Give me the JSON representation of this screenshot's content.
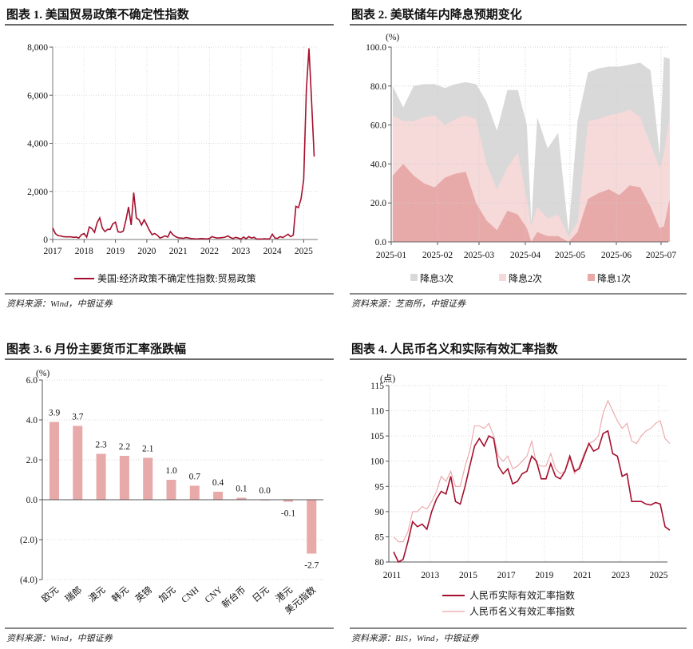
{
  "panels": [
    {
      "title": "图表 1. 美国贸易政策不确定性指数",
      "source": "资料来源：Wind，中银证券"
    },
    {
      "title": "图表 2. 美联储年内降息预期变化",
      "source": "资料来源：芝商所，中银证券"
    },
    {
      "title": "图表 3. 6 月份主要货币汇率涨跌幅",
      "source": "资料来源：Wind，中银证券"
    },
    {
      "title": "图表 4. 人民币名义和实际有效汇率指数",
      "source": "资料来源：BIS，Wind，中银证券"
    }
  ],
  "chart_data": [
    {
      "type": "line",
      "unit_label": "",
      "ylim": [
        0,
        8000
      ],
      "yticks": [
        "0",
        "2,000",
        "4,000",
        "6,000",
        "8,000"
      ],
      "xticks": [
        "2017",
        "2018",
        "2019",
        "2020",
        "2021",
        "2022",
        "2023",
        "2024",
        "2025"
      ],
      "grid": true,
      "legend_position": "bottom",
      "series": [
        {
          "name": "美国:经济政策不确定性指数:贸易政策",
          "color": "#a50f2d",
          "start": "2017-01",
          "frequency": "monthly",
          "values": [
            480,
            250,
            160,
            150,
            120,
            110,
            110,
            110,
            90,
            100,
            60,
            200,
            250,
            100,
            520,
            450,
            300,
            700,
            900,
            470,
            330,
            420,
            420,
            650,
            720,
            320,
            300,
            350,
            800,
            1350,
            600,
            1950,
            900,
            820,
            600,
            820,
            600,
            380,
            200,
            250,
            180,
            60,
            100,
            150,
            100,
            330,
            200,
            120,
            70,
            60,
            50,
            80,
            60,
            40,
            30,
            20,
            30,
            40,
            30,
            20,
            50,
            120,
            80,
            60,
            70,
            80,
            100,
            150,
            80,
            40,
            90,
            60,
            20,
            100,
            30,
            120,
            60,
            90,
            20,
            20,
            20,
            30,
            20,
            30,
            220,
            60,
            50,
            120,
            80,
            150,
            220,
            120,
            180,
            1380,
            1320,
            1700,
            2500,
            6200,
            7950,
            5800,
            3450
          ]
        }
      ]
    },
    {
      "type": "area",
      "unit_label": "(%)",
      "ylim": [
        0,
        100
      ],
      "yticks": [
        "0.0",
        "20.0",
        "40.0",
        "60.0",
        "80.0",
        "100.0"
      ],
      "xticks": [
        "2025-01",
        "2025-02",
        "2025-03",
        "2025-04",
        "2025-05",
        "2025-06",
        "2025-07"
      ],
      "grid": true,
      "stacked": false,
      "legend_position": "bottom",
      "x": [
        "2025-01-02",
        "2025-01-09",
        "2025-01-16",
        "2025-01-23",
        "2025-01-30",
        "2025-02-06",
        "2025-02-13",
        "2025-02-20",
        "2025-02-27",
        "2025-03-06",
        "2025-03-13",
        "2025-03-20",
        "2025-03-27",
        "2025-04-02",
        "2025-04-05",
        "2025-04-09",
        "2025-04-16",
        "2025-04-23",
        "2025-04-30",
        "2025-05-06",
        "2025-05-13",
        "2025-05-20",
        "2025-05-27",
        "2025-06-03",
        "2025-06-10",
        "2025-06-17",
        "2025-06-24",
        "2025-06-30",
        "2025-07-03",
        "2025-07-07"
      ],
      "series": [
        {
          "name": "降息3次",
          "color": "#d9d9d9",
          "values": [
            80,
            69,
            80,
            81,
            81,
            79,
            81,
            82,
            81,
            72,
            57,
            78,
            78,
            60,
            10,
            64,
            48,
            56,
            5,
            62,
            87,
            89,
            90,
            90,
            91,
            92,
            88,
            45,
            95,
            94
          ]
        },
        {
          "name": "降息2次",
          "color": "#f6d9d9",
          "values": [
            65,
            62,
            62,
            64,
            65,
            60,
            63,
            65,
            63,
            40,
            27,
            38,
            46,
            22,
            8,
            18,
            12,
            14,
            3,
            10,
            62,
            63,
            65,
            66,
            68,
            64,
            50,
            38,
            45,
            65
          ]
        },
        {
          "name": "降息1次",
          "color": "#e8a9a9",
          "values": [
            34,
            40,
            34,
            30,
            28,
            33,
            35,
            36,
            20,
            11,
            6,
            16,
            14,
            7,
            0,
            5,
            3,
            3,
            0,
            5,
            22,
            25,
            27,
            24,
            29,
            28,
            18,
            7,
            8,
            22
          ]
        }
      ]
    },
    {
      "type": "bar",
      "unit_label": "(%)",
      "ylim": [
        -4,
        6
      ],
      "yticks": [
        "(4.0)",
        "(2.0)",
        "0.0",
        "2.0",
        "4.0",
        "6.0"
      ],
      "negative_tick_color": "#d01010",
      "bar_color": "#e8a9a9",
      "grid": true,
      "categories": [
        "欧元",
        "瑞郎",
        "澳元",
        "韩元",
        "英镑",
        "加元",
        "CNH",
        "CNY",
        "新台币",
        "日元",
        "港元",
        "美元指数"
      ],
      "values": [
        3.9,
        3.7,
        2.3,
        2.2,
        2.1,
        1.0,
        0.7,
        0.4,
        0.1,
        0.0,
        -0.1,
        -2.7
      ],
      "data_labels": [
        "3.9",
        "3.7",
        "2.3",
        "2.2",
        "2.1",
        "1.0",
        "0.7",
        "0.4",
        "0.1",
        "0.0",
        "-0.1",
        "-2.7"
      ]
    },
    {
      "type": "line",
      "unit_label": "(点)",
      "ylim": [
        80,
        115
      ],
      "yticks": [
        "80",
        "85",
        "90",
        "95",
        "100",
        "105",
        "110",
        "115"
      ],
      "xticks": [
        "2011",
        "2013",
        "2015",
        "2017",
        "2019",
        "2021",
        "2023",
        "2025"
      ],
      "grid": true,
      "legend_position": "bottom",
      "start": "2011-02",
      "frequency": "quarterly",
      "series": [
        {
          "name": "人民币实际有效汇率指数",
          "color": "#a50f2d",
          "values": [
            82,
            80,
            80.5,
            84,
            88,
            87,
            87.5,
            86.5,
            90,
            92.5,
            94,
            93.5,
            97,
            92,
            91.5,
            95,
            99,
            103,
            104.5,
            103,
            105,
            104.5,
            99,
            97.5,
            98.5,
            95.5,
            96,
            97.5,
            98,
            101,
            100,
            96.5,
            96.5,
            99.5,
            97,
            96.5,
            98,
            101,
            98,
            98.5,
            101,
            103.5,
            102,
            102.5,
            105.5,
            106,
            101.5,
            101,
            97,
            97.5,
            92,
            92,
            92,
            91.5,
            91.3,
            91.8,
            91.5,
            87,
            86.3
          ]
        },
        {
          "name": "人民币名义有效汇率指数",
          "color": "#eba5a8",
          "values": [
            85,
            84,
            84,
            86,
            90,
            90,
            91,
            90.5,
            92,
            94,
            97,
            96,
            98,
            95,
            95,
            99,
            102,
            107,
            107,
            106.5,
            107.5,
            105,
            101,
            100,
            101,
            98.5,
            99,
            100,
            101,
            104,
            99.5,
            99,
            99,
            101.5,
            98.5,
            97.5,
            98,
            100.5,
            97.5,
            99,
            101.5,
            103.5,
            104,
            105,
            109.5,
            112,
            110,
            108,
            106.5,
            107.5,
            104,
            103.5,
            105,
            106,
            106.5,
            107.5,
            108,
            104.5,
            103.5
          ]
        }
      ]
    }
  ]
}
